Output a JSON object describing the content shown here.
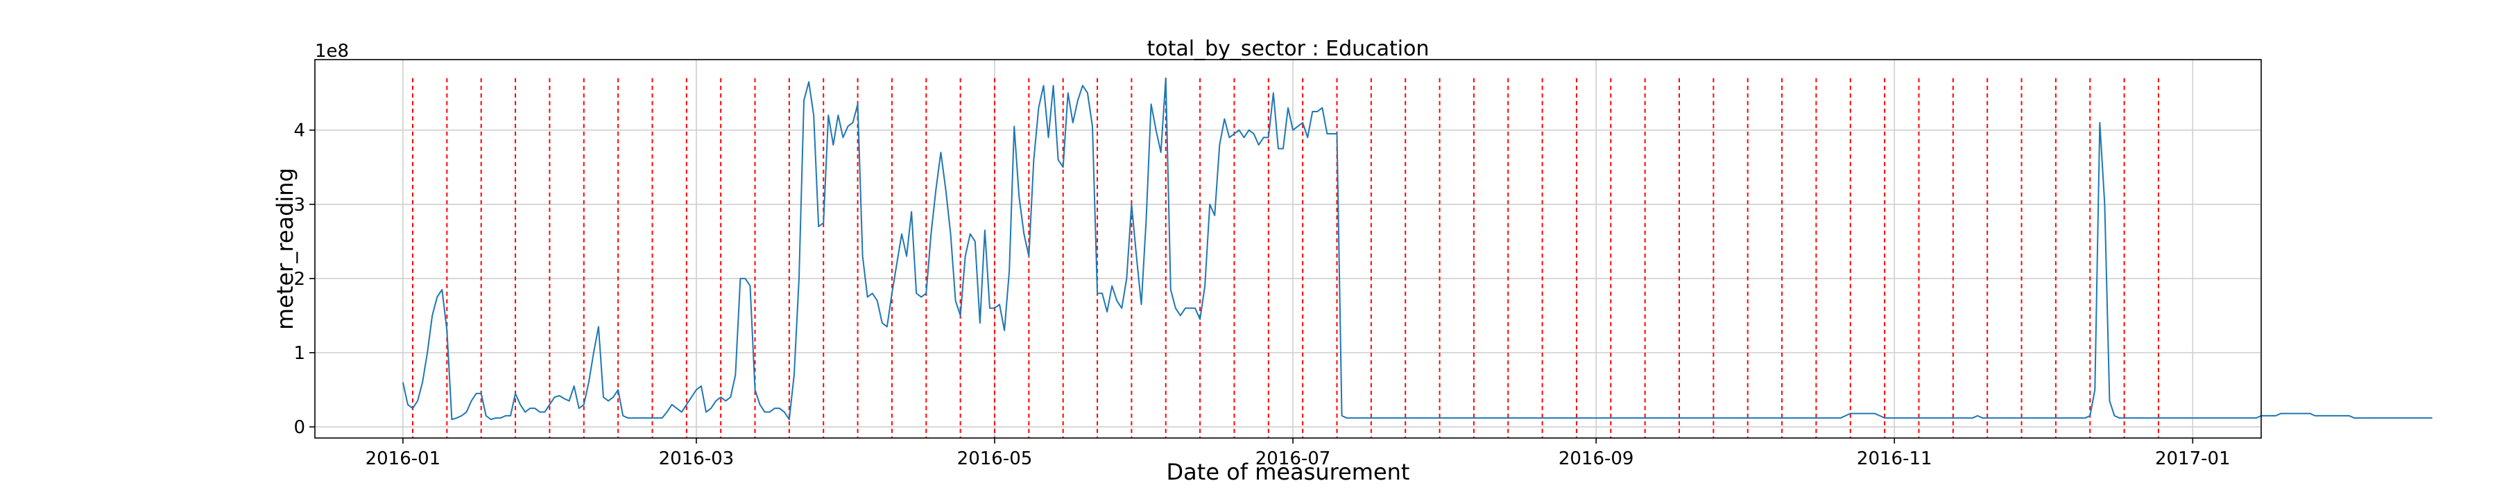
{
  "chart_data": {
    "type": "line",
    "title": "total_by_sector : Education",
    "xlabel": "Date of measurement",
    "ylabel": "meter_reading",
    "y_multiplier_label": "1e8",
    "y_ticks": [
      0,
      1,
      2,
      3,
      4
    ],
    "y_tick_labels": [
      "0",
      "1",
      "2",
      "3",
      "4"
    ],
    "ylim": [
      -0.15,
      4.95
    ],
    "x_ticks": [
      "2016-01-01",
      "2016-03-01",
      "2016-05-01",
      "2016-07-01",
      "2016-09-01",
      "2016-11-01",
      "2017-01-01"
    ],
    "x_tick_labels": [
      "2016-01",
      "2016-03",
      "2016-05",
      "2016-07",
      "2016-09",
      "2016-11",
      "2017-01"
    ],
    "xlim": [
      "2015-12-14",
      "2017-01-15"
    ],
    "grid": true,
    "series_color": "#1f77b4",
    "vline_color": "#ff0000",
    "vlines": [
      "2016-01-03",
      "2016-01-10",
      "2016-01-17",
      "2016-01-24",
      "2016-01-31",
      "2016-02-07",
      "2016-02-14",
      "2016-02-21",
      "2016-02-28",
      "2016-03-06",
      "2016-03-13",
      "2016-03-20",
      "2016-03-27",
      "2016-04-03",
      "2016-04-10",
      "2016-04-17",
      "2016-04-24",
      "2016-05-01",
      "2016-05-08",
      "2016-05-15",
      "2016-05-22",
      "2016-05-29",
      "2016-06-05",
      "2016-06-12",
      "2016-06-19",
      "2016-06-26",
      "2016-07-03",
      "2016-07-10",
      "2016-07-17",
      "2016-07-24",
      "2016-07-31",
      "2016-08-07",
      "2016-08-14",
      "2016-08-21",
      "2016-08-28",
      "2016-09-04",
      "2016-09-11",
      "2016-09-18",
      "2016-09-25",
      "2016-10-02",
      "2016-10-09",
      "2016-10-16",
      "2016-10-23",
      "2016-10-30",
      "2016-11-06",
      "2016-11-13",
      "2016-11-20",
      "2016-11-27",
      "2016-12-04",
      "2016-12-11",
      "2016-12-18",
      "2016-12-25"
    ],
    "series": [
      {
        "start_date": "2016-01-01",
        "values": [
          0.6,
          0.3,
          0.25,
          0.35,
          0.6,
          1.0,
          1.5,
          1.75,
          1.85,
          1.3,
          0.1,
          0.12,
          0.15,
          0.2,
          0.35,
          0.45,
          0.45,
          0.15,
          0.1,
          0.12,
          0.12,
          0.15,
          0.15,
          0.45,
          0.3,
          0.2,
          0.25,
          0.25,
          0.2,
          0.2,
          0.3,
          0.4,
          0.42,
          0.38,
          0.35,
          0.55,
          0.25,
          0.3,
          0.6,
          1.0,
          1.35,
          0.4,
          0.35,
          0.4,
          0.5,
          0.15,
          0.12,
          0.12,
          0.12,
          0.12,
          0.12,
          0.12,
          0.12,
          0.12,
          0.2,
          0.3,
          0.25,
          0.2,
          0.3,
          0.4,
          0.5,
          0.55,
          0.2,
          0.25,
          0.35,
          0.4,
          0.35,
          0.4,
          0.7,
          2.0,
          2.0,
          1.9,
          0.5,
          0.3,
          0.2,
          0.2,
          0.25,
          0.25,
          0.2,
          0.1,
          0.7,
          2.0,
          4.4,
          4.65,
          4.2,
          2.7,
          2.75,
          4.2,
          3.8,
          4.2,
          3.9,
          4.05,
          4.1,
          4.35,
          2.3,
          1.75,
          1.8,
          1.7,
          1.4,
          1.35,
          1.8,
          2.2,
          2.6,
          2.3,
          2.9,
          1.8,
          1.75,
          1.8,
          2.6,
          3.2,
          3.7,
          3.2,
          2.6,
          1.7,
          1.5,
          2.3,
          2.6,
          2.5,
          1.4,
          2.65,
          1.6,
          1.6,
          1.65,
          1.3,
          2.1,
          4.05,
          3.1,
          2.6,
          2.3,
          3.6,
          4.3,
          4.6,
          3.9,
          4.6,
          3.6,
          3.5,
          4.5,
          4.1,
          4.4,
          4.6,
          4.5,
          4.05,
          1.8,
          1.8,
          1.55,
          1.9,
          1.7,
          1.6,
          2.0,
          3.0,
          2.3,
          1.65,
          2.8,
          4.35,
          4.0,
          3.7,
          4.7,
          1.85,
          1.6,
          1.5,
          1.6,
          1.6,
          1.6,
          1.45,
          1.9,
          3.0,
          2.85,
          3.8,
          4.15,
          3.9,
          3.95,
          4.0,
          3.9,
          4.0,
          3.95,
          3.8,
          3.9,
          3.9,
          4.5,
          3.75,
          3.75,
          4.3,
          4.0,
          4.05,
          4.1,
          3.9,
          4.25,
          4.25,
          4.3,
          3.95,
          3.95,
          3.95,
          0.15,
          0.12,
          0.12,
          0.12,
          0.12,
          0.12,
          0.12,
          0.12,
          0.12,
          0.12,
          0.12,
          0.12,
          0.12,
          0.12,
          0.12,
          0.12,
          0.12,
          0.12,
          0.12,
          0.12,
          0.12,
          0.12,
          0.12,
          0.12,
          0.12,
          0.12,
          0.12,
          0.12,
          0.12,
          0.12,
          0.12,
          0.12,
          0.12,
          0.12,
          0.12,
          0.12,
          0.12,
          0.12,
          0.12,
          0.12,
          0.12,
          0.12,
          0.12,
          0.12,
          0.12,
          0.12,
          0.12,
          0.12,
          0.12,
          0.12,
          0.12,
          0.12,
          0.12,
          0.12,
          0.12,
          0.12,
          0.12,
          0.12,
          0.12,
          0.12,
          0.12,
          0.12,
          0.12,
          0.12,
          0.12,
          0.12,
          0.12,
          0.12,
          0.12,
          0.12,
          0.12,
          0.12,
          0.12,
          0.12,
          0.12,
          0.12,
          0.12,
          0.12,
          0.12,
          0.12,
          0.12,
          0.12,
          0.12,
          0.12,
          0.12,
          0.12,
          0.12,
          0.12,
          0.12,
          0.12,
          0.12,
          0.12,
          0.12,
          0.12,
          0.12,
          0.12,
          0.12,
          0.12,
          0.12,
          0.12,
          0.12,
          0.12,
          0.12,
          0.15,
          0.18,
          0.18,
          0.18,
          0.18,
          0.18,
          0.18,
          0.15,
          0.12,
          0.12,
          0.12,
          0.12,
          0.12,
          0.12,
          0.12,
          0.12,
          0.12,
          0.12,
          0.12,
          0.12,
          0.12,
          0.12,
          0.12,
          0.12,
          0.12,
          0.12,
          0.12,
          0.15,
          0.12,
          0.12,
          0.12,
          0.12,
          0.12,
          0.12,
          0.12,
          0.12,
          0.12,
          0.12,
          0.12,
          0.12,
          0.12,
          0.12,
          0.12,
          0.12,
          0.12,
          0.12,
          0.12,
          0.12,
          0.12,
          0.12,
          0.15,
          0.5,
          4.1,
          3.0,
          0.35,
          0.15,
          0.12,
          0.12,
          0.12,
          0.12,
          0.12,
          0.12,
          0.12,
          0.12,
          0.12,
          0.12,
          0.12,
          0.12,
          0.12,
          0.12,
          0.12,
          0.12,
          0.12,
          0.12,
          0.12,
          0.12,
          0.12,
          0.12,
          0.12,
          0.12,
          0.12,
          0.12,
          0.12,
          0.12,
          0.12,
          0.15,
          0.15,
          0.15,
          0.15,
          0.18,
          0.18,
          0.18,
          0.18,
          0.18,
          0.18,
          0.18,
          0.15,
          0.15,
          0.15,
          0.15,
          0.15,
          0.15,
          0.15,
          0.15,
          0.12,
          0.12,
          0.12,
          0.12,
          0.12,
          0.12,
          0.12,
          0.12,
          0.12,
          0.12,
          0.12,
          0.12,
          0.12,
          0.12,
          0.12,
          0.12,
          0.12
        ]
      }
    ]
  }
}
